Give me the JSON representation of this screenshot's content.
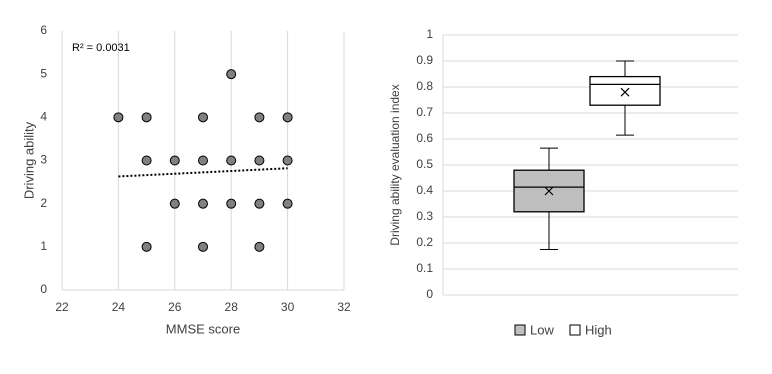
{
  "chart_data": [
    {
      "type": "scatter",
      "xlabel": "MMSE score",
      "ylabel": "Driving ability",
      "annotation": "R² = 0.0031",
      "x": [
        24,
        25,
        25,
        25,
        26,
        26,
        27,
        27,
        27,
        27,
        28,
        28,
        28,
        29,
        29,
        29,
        29,
        30,
        30,
        30
      ],
      "values": [
        4,
        4,
        3,
        1,
        3,
        2,
        4,
        3,
        2,
        1,
        5,
        3,
        2,
        4,
        3,
        2,
        1,
        4,
        3,
        2
      ],
      "color": "#808080",
      "trendline": {
        "x": [
          24,
          30
        ],
        "values": [
          2.63,
          2.82
        ]
      },
      "xlim": [
        22,
        32
      ],
      "ylim": [
        0,
        6
      ],
      "xticks": [
        22,
        24,
        26,
        28,
        30,
        32
      ],
      "yticks": [
        0,
        1,
        2,
        3,
        4,
        5,
        6
      ],
      "grid": "x"
    },
    {
      "type": "box",
      "ylabel": "Driving ability evaluation index",
      "series": [
        {
          "name": "Low",
          "color": "#bfbfbf",
          "min": 0.175,
          "q1": 0.32,
          "median": 0.415,
          "q3": 0.48,
          "max": 0.565,
          "mean": 0.4
        },
        {
          "name": "High",
          "color": "#ffffff",
          "min": 0.615,
          "q1": 0.73,
          "median": 0.81,
          "q3": 0.84,
          "max": 0.9,
          "mean": 0.78
        }
      ],
      "ylim": [
        0,
        1
      ],
      "yticks": [
        0,
        0.1,
        0.2,
        0.3,
        0.4,
        0.5,
        0.6,
        0.7,
        0.8,
        0.9,
        1
      ],
      "grid": "y",
      "legend": "bottom"
    }
  ]
}
